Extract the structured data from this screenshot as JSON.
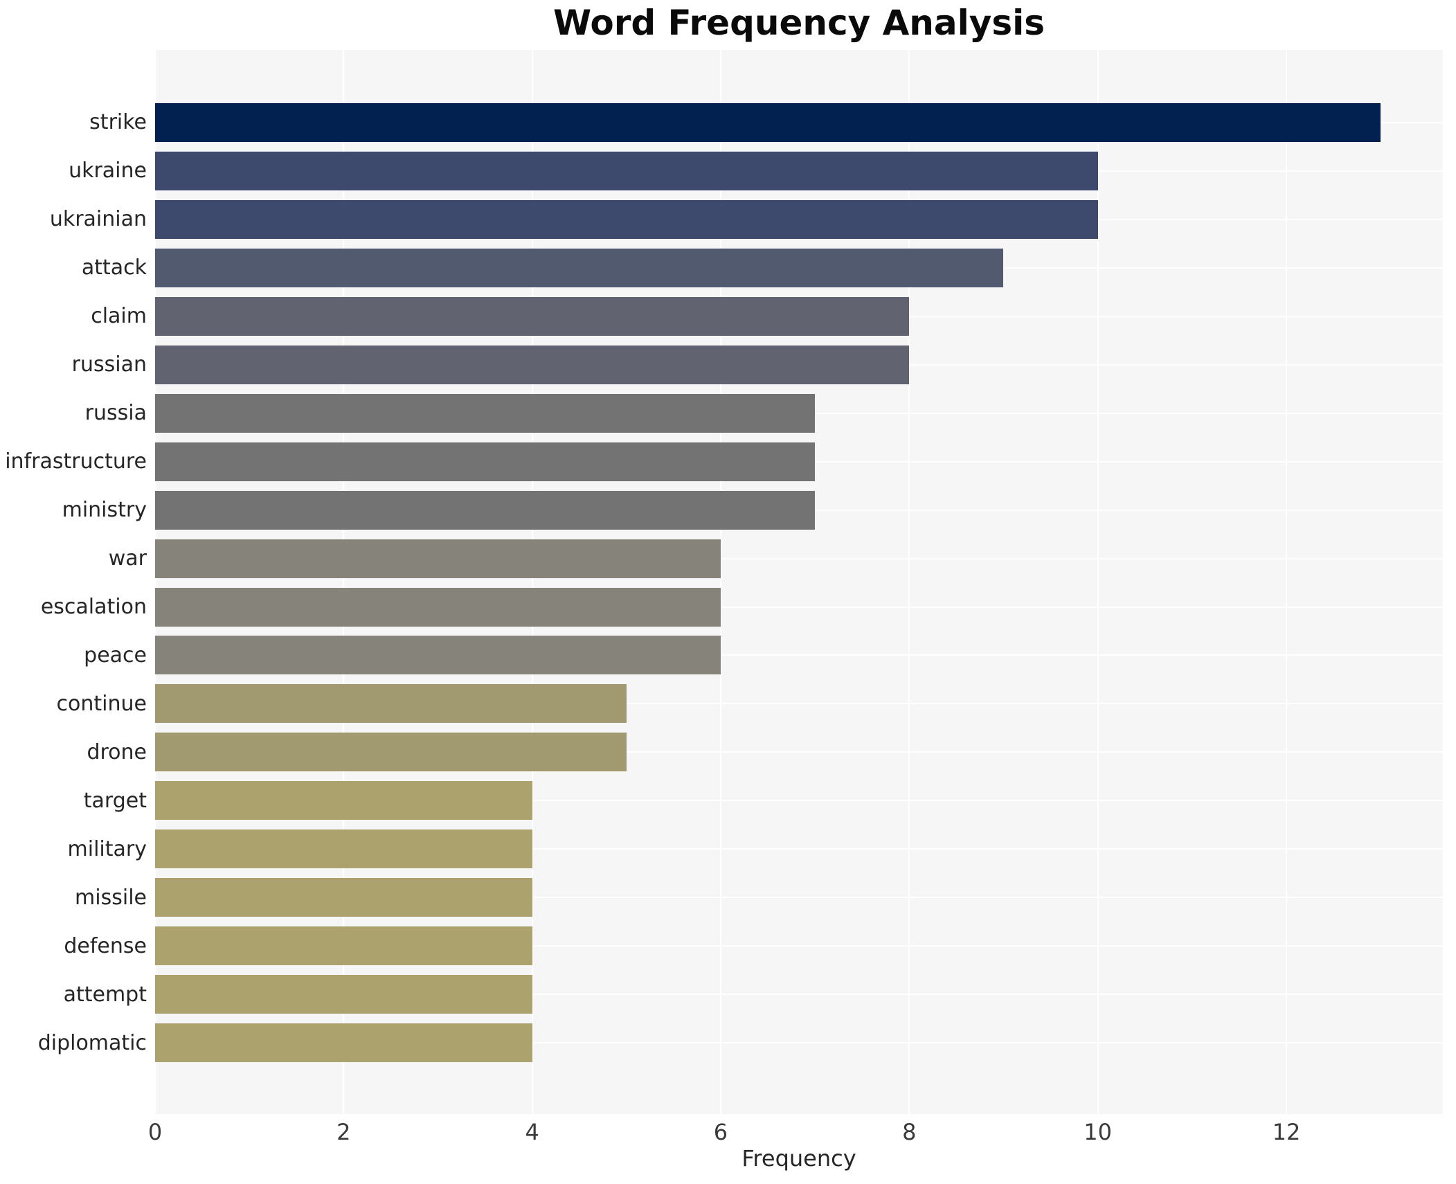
{
  "title": "Word Frequency Analysis",
  "xlabel": "Frequency",
  "colors": {
    "figure_background": "#ffffff",
    "plot_background": "#f6f6f6",
    "gridline": "#ffffff",
    "title_text": "#0a0a0a",
    "axis_text": "#262626",
    "tick_text": "#3a3a3a"
  },
  "chart_data": {
    "type": "bar",
    "orientation": "horizontal",
    "title": "Word Frequency Analysis",
    "xlabel": "Frequency",
    "ylabel": "",
    "categories": [
      "strike",
      "ukraine",
      "ukrainian",
      "attack",
      "claim",
      "russian",
      "russia",
      "infrastructure",
      "ministry",
      "war",
      "escalation",
      "peace",
      "continue",
      "drone",
      "target",
      "military",
      "missile",
      "defense",
      "attempt",
      "diplomatic"
    ],
    "values": [
      13,
      10,
      10,
      9,
      8,
      8,
      7,
      7,
      7,
      6,
      6,
      6,
      5,
      5,
      4,
      4,
      4,
      4,
      4,
      4
    ],
    "bar_colors": [
      "#032150",
      "#3d4a6d",
      "#3d4a6d",
      "#525a70",
      "#616470",
      "#616470",
      "#747373",
      "#747373",
      "#747373",
      "#86837a",
      "#86837a",
      "#86837a",
      "#a19970",
      "#a19970",
      "#aca26e",
      "#aca26e",
      "#aca26e",
      "#aca26e",
      "#aca26e",
      "#aca26e"
    ],
    "xlim": [
      0,
      13.66
    ],
    "xticks": [
      0,
      2,
      4,
      6,
      8,
      10,
      12
    ],
    "xtick_labels": [
      "0",
      "2",
      "4",
      "6",
      "8",
      "10",
      "12"
    ],
    "grid": true,
    "legend": "none",
    "bar_height_fraction": 0.8
  }
}
